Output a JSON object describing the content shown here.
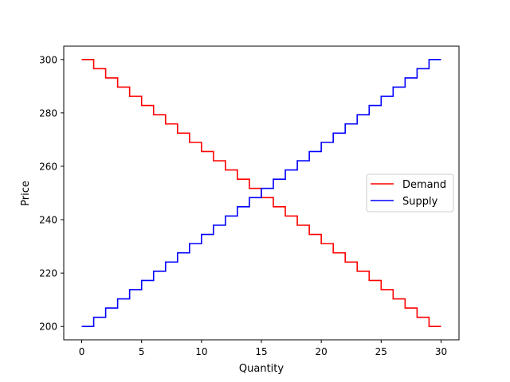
{
  "chart_data": {
    "type": "line",
    "step": "post",
    "title": "",
    "xlabel": "Quantity",
    "ylabel": "Price",
    "xlim": [
      -1.5,
      31.5
    ],
    "ylim": [
      195,
      305
    ],
    "xticks": [
      0,
      5,
      10,
      15,
      20,
      25,
      30
    ],
    "yticks": [
      200,
      220,
      240,
      260,
      280,
      300
    ],
    "grid": false,
    "legend": {
      "placement": "center-right"
    },
    "x": [
      0,
      1,
      2,
      3,
      4,
      5,
      6,
      7,
      8,
      9,
      10,
      11,
      12,
      13,
      14,
      15,
      16,
      17,
      18,
      19,
      20,
      21,
      22,
      23,
      24,
      25,
      26,
      27,
      28,
      29,
      30
    ],
    "series": [
      {
        "name": "Demand",
        "color": "#ff0000",
        "values": [
          300,
          296.55,
          293.1,
          289.66,
          286.21,
          282.76,
          279.31,
          275.86,
          272.41,
          268.97,
          265.52,
          262.07,
          258.62,
          255.17,
          251.72,
          248.28,
          244.83,
          241.38,
          237.93,
          234.48,
          231.03,
          227.59,
          224.14,
          220.69,
          217.24,
          213.79,
          210.34,
          206.9,
          203.45,
          200,
          200
        ]
      },
      {
        "name": "Supply",
        "color": "#0000ff",
        "values": [
          200,
          203.45,
          206.9,
          210.34,
          213.79,
          217.24,
          220.69,
          224.14,
          227.59,
          231.03,
          234.48,
          237.93,
          241.38,
          244.83,
          248.28,
          251.72,
          255.17,
          258.62,
          262.07,
          265.52,
          268.97,
          272.41,
          275.86,
          279.31,
          282.76,
          286.21,
          289.66,
          293.1,
          296.55,
          300,
          300
        ]
      }
    ]
  }
}
